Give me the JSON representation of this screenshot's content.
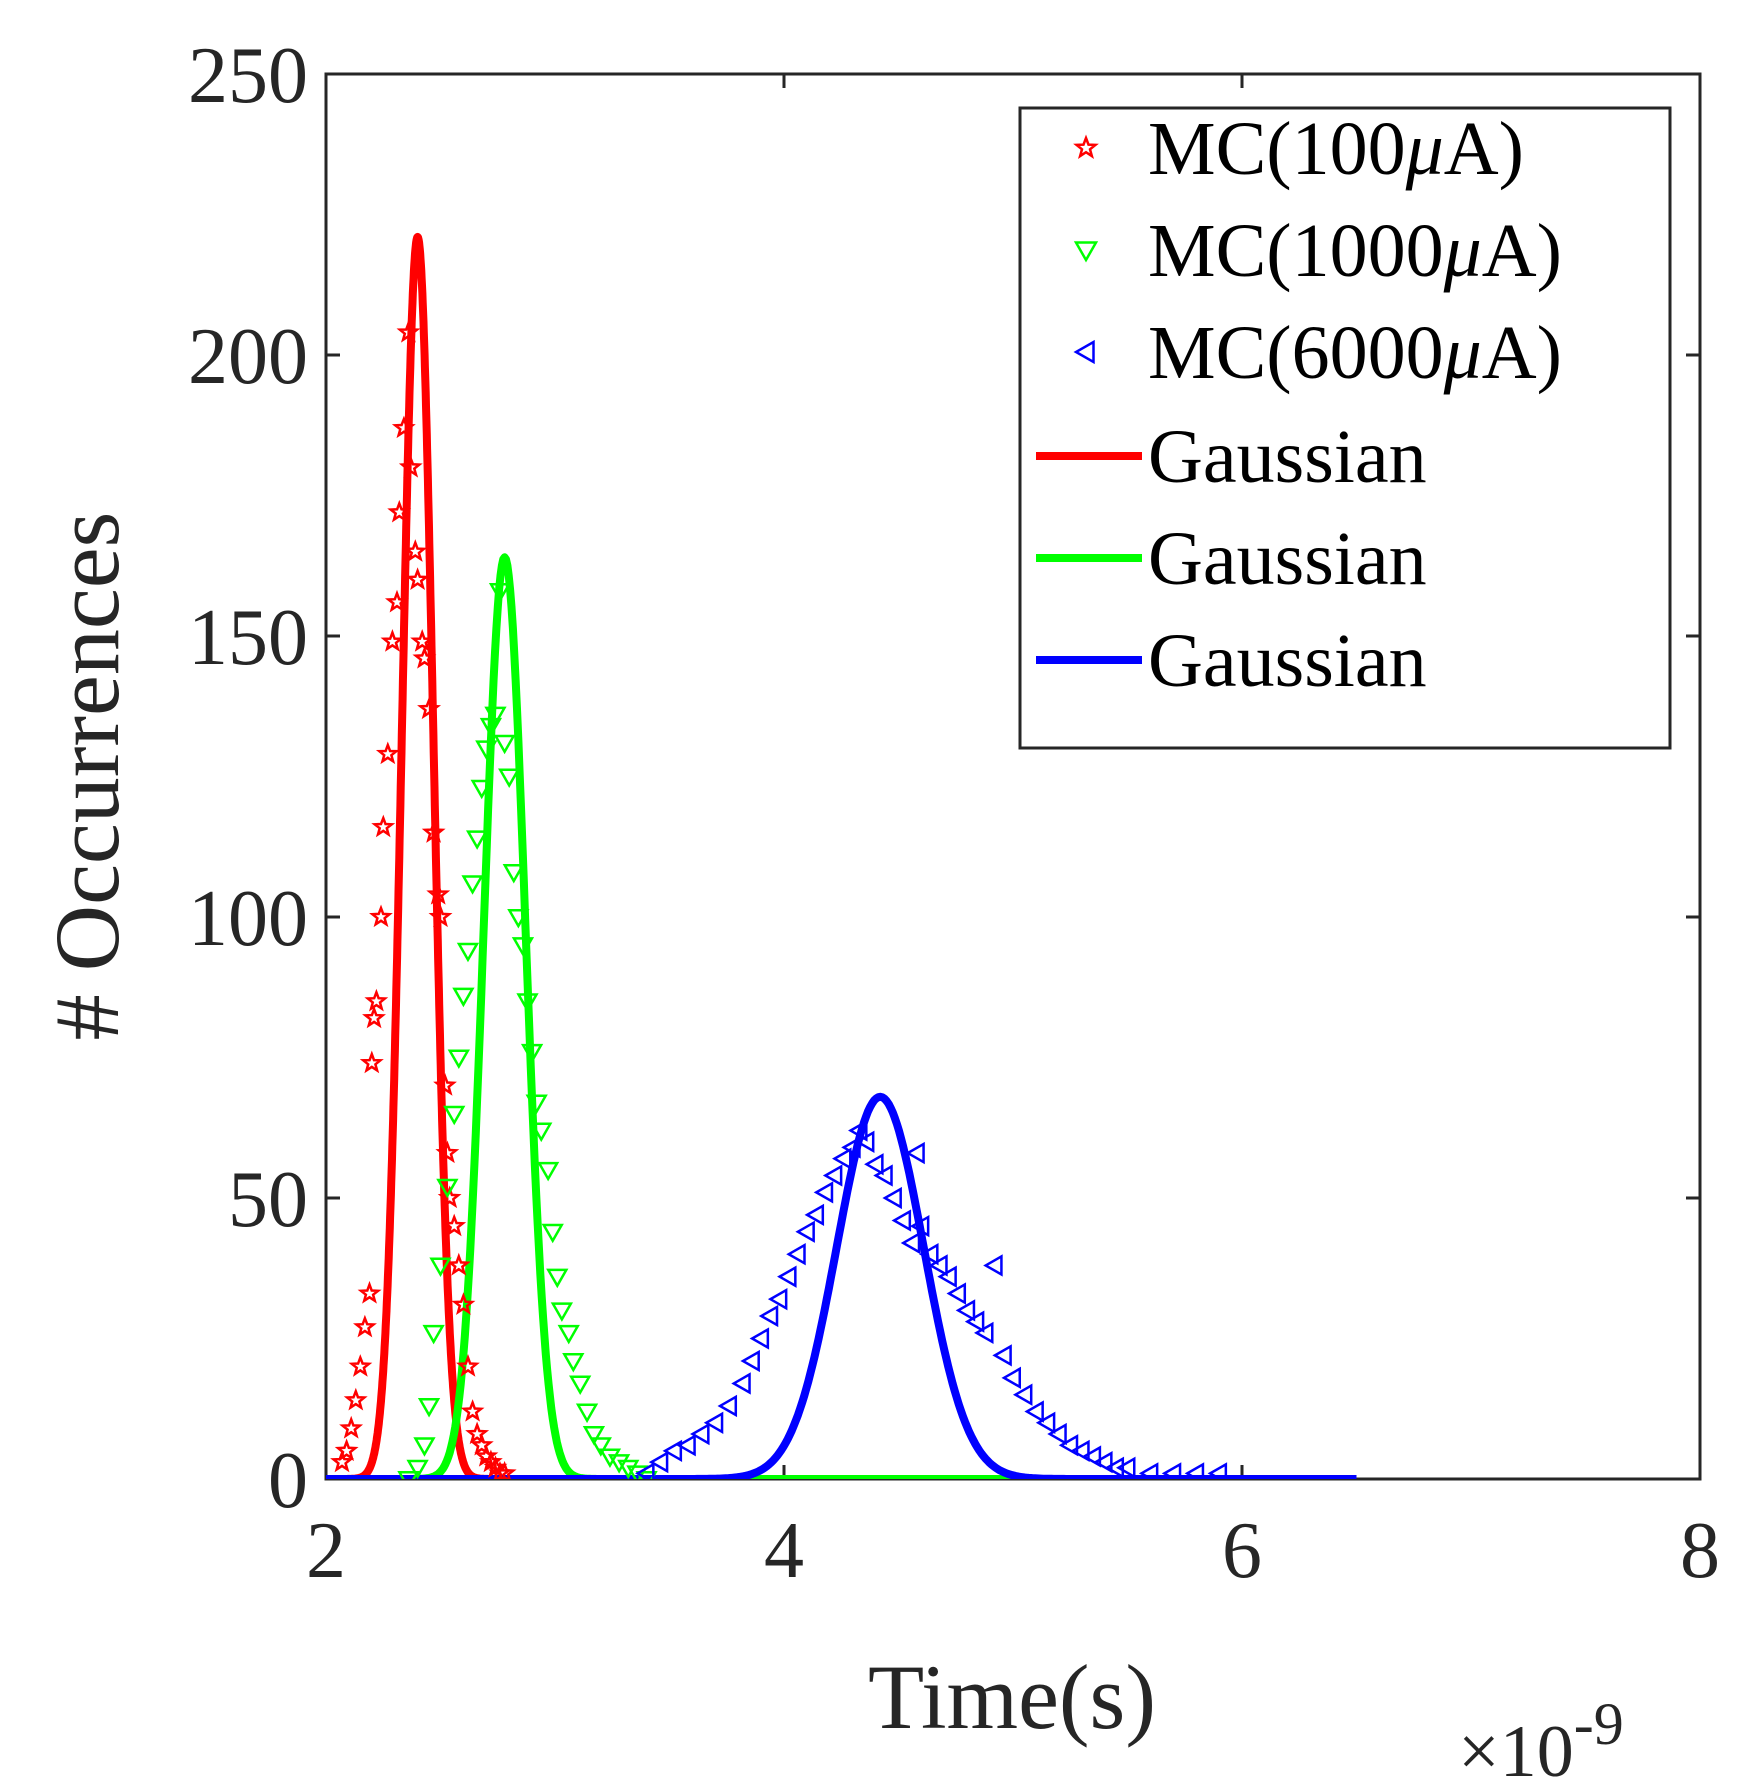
{
  "chart_data": {
    "type": "scatter",
    "title": "",
    "xlabel": "Time(s)",
    "ylabel": "# Occurrences",
    "x_exponent": {
      "base": "×10",
      "power": "-9"
    },
    "xlim": [
      2,
      8
    ],
    "ylim": [
      0,
      250
    ],
    "xticks": [
      "2",
      "4",
      "6",
      "8"
    ],
    "yticks": [
      "0",
      "50",
      "100",
      "150",
      "200",
      "250"
    ],
    "legend_position": "top-right",
    "series": [
      {
        "name": "MC(100μA)",
        "label_prefix": "MC(100",
        "label_mu": "μ",
        "label_suffix": "A)",
        "kind": "markers",
        "marker": "star",
        "color": "#ff0000",
        "points": [
          [
            2.07,
            3
          ],
          [
            2.09,
            5
          ],
          [
            2.11,
            9
          ],
          [
            2.13,
            14
          ],
          [
            2.15,
            20
          ],
          [
            2.17,
            27
          ],
          [
            2.19,
            33
          ],
          [
            2.2,
            74
          ],
          [
            2.21,
            82
          ],
          [
            2.22,
            85
          ],
          [
            2.24,
            100
          ],
          [
            2.25,
            116
          ],
          [
            2.27,
            129
          ],
          [
            2.29,
            149
          ],
          [
            2.31,
            156
          ],
          [
            2.32,
            172
          ],
          [
            2.34,
            187
          ],
          [
            2.36,
            204
          ],
          [
            2.37,
            180
          ],
          [
            2.39,
            165
          ],
          [
            2.4,
            160
          ],
          [
            2.42,
            149
          ],
          [
            2.43,
            146
          ],
          [
            2.45,
            137
          ],
          [
            2.47,
            115
          ],
          [
            2.49,
            104
          ],
          [
            2.5,
            100
          ],
          [
            2.52,
            70
          ],
          [
            2.53,
            58
          ],
          [
            2.54,
            50
          ],
          [
            2.56,
            45
          ],
          [
            2.58,
            38
          ],
          [
            2.6,
            31
          ],
          [
            2.62,
            20
          ],
          [
            2.64,
            12
          ],
          [
            2.66,
            8
          ],
          [
            2.68,
            6
          ],
          [
            2.7,
            4
          ],
          [
            2.72,
            3
          ],
          [
            2.74,
            2
          ],
          [
            2.76,
            1
          ],
          [
            2.78,
            1
          ]
        ]
      },
      {
        "name": "MC(1000μA)",
        "label_prefix": "MC(1000",
        "label_mu": "μ",
        "label_suffix": "A)",
        "kind": "markers",
        "marker": "triangle-down",
        "color": "#00ff00",
        "points": [
          [
            2.36,
            0
          ],
          [
            2.4,
            2
          ],
          [
            2.43,
            6
          ],
          [
            2.45,
            13
          ],
          [
            2.47,
            26
          ],
          [
            2.5,
            38
          ],
          [
            2.53,
            52
          ],
          [
            2.56,
            65
          ],
          [
            2.58,
            75
          ],
          [
            2.6,
            86
          ],
          [
            2.62,
            94
          ],
          [
            2.64,
            106
          ],
          [
            2.66,
            114
          ],
          [
            2.68,
            123
          ],
          [
            2.7,
            130
          ],
          [
            2.72,
            134
          ],
          [
            2.74,
            136
          ],
          [
            2.76,
            158
          ],
          [
            2.78,
            131
          ],
          [
            2.8,
            125
          ],
          [
            2.82,
            108
          ],
          [
            2.84,
            100
          ],
          [
            2.86,
            95
          ],
          [
            2.88,
            85
          ],
          [
            2.9,
            76
          ],
          [
            2.92,
            67
          ],
          [
            2.94,
            62
          ],
          [
            2.97,
            55
          ],
          [
            2.99,
            44
          ],
          [
            3.01,
            36
          ],
          [
            3.03,
            30
          ],
          [
            3.06,
            26
          ],
          [
            3.08,
            21
          ],
          [
            3.11,
            17
          ],
          [
            3.14,
            12
          ],
          [
            3.17,
            8
          ],
          [
            3.2,
            6
          ],
          [
            3.24,
            4
          ],
          [
            3.28,
            3
          ],
          [
            3.32,
            2
          ],
          [
            3.36,
            1
          ],
          [
            3.4,
            0
          ]
        ]
      },
      {
        "name": "MC(6000μA)",
        "label_prefix": "MC(6000",
        "label_mu": "μ",
        "label_suffix": "A)",
        "kind": "markers",
        "marker": "triangle-left",
        "color": "#0000ff",
        "points": [
          [
            3.4,
            1
          ],
          [
            3.46,
            3
          ],
          [
            3.52,
            5
          ],
          [
            3.58,
            6
          ],
          [
            3.64,
            8
          ],
          [
            3.7,
            10
          ],
          [
            3.76,
            13
          ],
          [
            3.82,
            17
          ],
          [
            3.86,
            21
          ],
          [
            3.9,
            25
          ],
          [
            3.94,
            29
          ],
          [
            3.98,
            32
          ],
          [
            4.02,
            36
          ],
          [
            4.06,
            40
          ],
          [
            4.1,
            44
          ],
          [
            4.14,
            47
          ],
          [
            4.18,
            51
          ],
          [
            4.22,
            54
          ],
          [
            4.26,
            57
          ],
          [
            4.3,
            59
          ],
          [
            4.33,
            62
          ],
          [
            4.36,
            60
          ],
          [
            4.4,
            56
          ],
          [
            4.44,
            54
          ],
          [
            4.48,
            50
          ],
          [
            4.52,
            46
          ],
          [
            4.56,
            42
          ],
          [
            4.58,
            58
          ],
          [
            4.6,
            45
          ],
          [
            4.64,
            40
          ],
          [
            4.68,
            38
          ],
          [
            4.72,
            36
          ],
          [
            4.76,
            33
          ],
          [
            4.8,
            30
          ],
          [
            4.84,
            28
          ],
          [
            4.88,
            26
          ],
          [
            4.92,
            38
          ],
          [
            4.96,
            22
          ],
          [
            5.0,
            18
          ],
          [
            5.05,
            15
          ],
          [
            5.1,
            12
          ],
          [
            5.15,
            10
          ],
          [
            5.2,
            8
          ],
          [
            5.25,
            6
          ],
          [
            5.3,
            5
          ],
          [
            5.35,
            4
          ],
          [
            5.4,
            3
          ],
          [
            5.45,
            2
          ],
          [
            5.5,
            2
          ],
          [
            5.6,
            1
          ],
          [
            5.7,
            1
          ],
          [
            5.8,
            1
          ],
          [
            5.9,
            1
          ]
        ]
      },
      {
        "name": "Gaussian",
        "kind": "line",
        "color": "#ff0000",
        "gaussian": {
          "amplitude": 221,
          "mean": 2.4,
          "sigma": 0.068
        },
        "x_range": [
          2.0,
          2.8
        ]
      },
      {
        "name": "Gaussian",
        "kind": "line",
        "color": "#00ff00",
        "gaussian": {
          "amplitude": 164,
          "mean": 2.78,
          "sigma": 0.09
        },
        "x_range": [
          2.0,
          5.0
        ]
      },
      {
        "name": "Gaussian",
        "kind": "line",
        "color": "#0000ff",
        "gaussian": {
          "amplitude": 68,
          "mean": 4.42,
          "sigma": 0.19
        },
        "x_range": [
          2.0,
          6.5
        ]
      }
    ]
  }
}
